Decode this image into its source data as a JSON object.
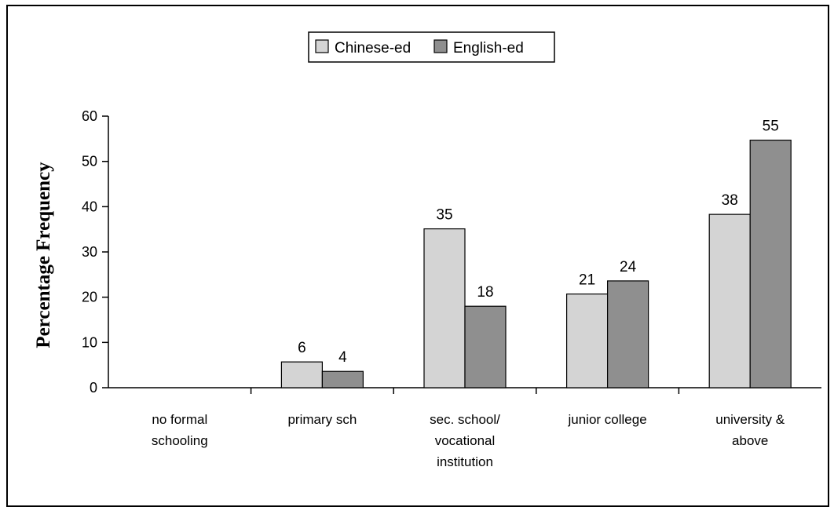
{
  "chart_data": {
    "type": "bar",
    "title": "",
    "xlabel": "",
    "ylabel": "Percentage Frequency",
    "ylim": [
      0,
      60
    ],
    "yticks": [
      0,
      10,
      20,
      30,
      40,
      50,
      60
    ],
    "grid": false,
    "legend_position": "top-center",
    "categories": [
      [
        "no formal",
        "schooling"
      ],
      [
        "primary sch"
      ],
      [
        "sec. school/",
        "vocational",
        "institution"
      ],
      [
        "junior college"
      ],
      [
        "university &",
        "above"
      ]
    ],
    "series": [
      {
        "name": "Chinese-ed",
        "color": "#d4d4d4",
        "values": [
          null,
          6,
          35,
          21,
          38
        ],
        "display_values": [
          0,
          5.7,
          35.1,
          20.7,
          38.3
        ]
      },
      {
        "name": "English-ed",
        "color": "#8f8f8f",
        "values": [
          null,
          4,
          18,
          24,
          55
        ],
        "display_values": [
          0,
          3.6,
          18,
          23.6,
          54.7
        ]
      }
    ]
  }
}
